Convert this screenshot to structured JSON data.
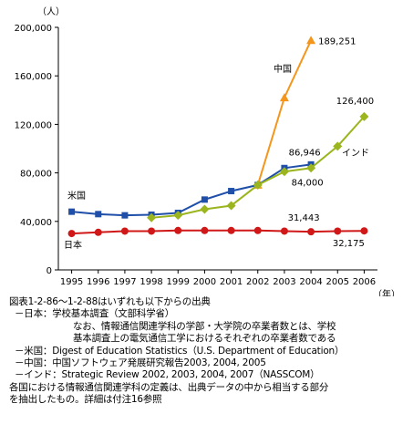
{
  "chart_data": {
    "type": "line",
    "unit_label": "（人）",
    "x_unit_label": "（年）",
    "ylim": [
      0,
      200000
    ],
    "yticks": [
      0,
      40000,
      80000,
      120000,
      160000,
      200000
    ],
    "ytick_labels": [
      "0",
      "40,000",
      "80,000",
      "120,000",
      "160,000",
      "200,000"
    ],
    "categories": [
      "1995",
      "1996",
      "1997",
      "1998",
      "1999",
      "2000",
      "2001",
      "2002",
      "2003",
      "2004",
      "2005",
      "2006"
    ],
    "grid": false,
    "series": [
      {
        "name": "米国",
        "color": "#1f4fa8",
        "marker": "square",
        "values": [
          48000,
          46000,
          45000,
          45500,
          47000,
          58000,
          65000,
          70000,
          84000,
          86946,
          null,
          null
        ]
      },
      {
        "name": "日本",
        "color": "#d01818",
        "marker": "circle",
        "values": [
          30000,
          31000,
          32000,
          32000,
          32500,
          32500,
          32500,
          32500,
          32000,
          31443,
          32000,
          32175
        ]
      },
      {
        "name": "中国",
        "color": "#f5961c",
        "marker": "triangle",
        "values": [
          null,
          null,
          null,
          null,
          null,
          null,
          null,
          70000,
          142000,
          189251,
          null,
          null
        ]
      },
      {
        "name": "インド",
        "color": "#9ab51e",
        "marker": "diamond",
        "values": [
          null,
          null,
          null,
          43000,
          45000,
          50000,
          53000,
          70000,
          81000,
          84000,
          102000,
          126400
        ]
      }
    ],
    "annotations": [
      {
        "text": "189,251",
        "x": "2004",
        "y": 189251
      },
      {
        "text": "126,400",
        "x": "2006",
        "y": 126400
      },
      {
        "text": "86,946",
        "x": "2004",
        "y": 86946
      },
      {
        "text": "84,000",
        "x": "2004",
        "y": 84000
      },
      {
        "text": "31,443",
        "x": "2004",
        "y": 31443
      },
      {
        "text": "32,175",
        "x": "2006",
        "y": 32175
      }
    ]
  },
  "notes": {
    "title": "図表1-2-86～1-2-88はいずれも以下からの出典",
    "japan_source": "－日本：学校基本調査（文部科学省）",
    "japan_note_1": "なお、情報通信関連学科の学部・大学院の卒業者数とは、学校",
    "japan_note_2": "基本調査上の電気通信工学におけるそれぞれの卒業者数である",
    "us_source": "－米国：Digest of Education Statistics（U.S. Department of Education）",
    "china_source": "－中国：中国ソフトウェア発展研究報告2003, 2004, 2005",
    "india_source": "－インド：Strategic Review 2002, 2003, 2004, 2007（NASSCOM）",
    "footer_1": "各国における情報通信関連学科の定義は、出典データの中から相当する部分",
    "footer_2": "を抽出したもの。詳細は付注16参照"
  }
}
